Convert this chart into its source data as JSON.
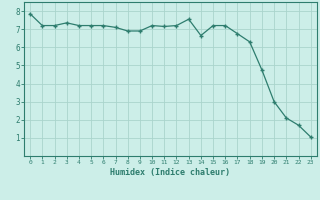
{
  "x": [
    0,
    1,
    2,
    3,
    4,
    5,
    6,
    7,
    8,
    9,
    10,
    11,
    12,
    13,
    14,
    15,
    16,
    17,
    18,
    19,
    20,
    21,
    22,
    23
  ],
  "y": [
    7.85,
    7.2,
    7.2,
    7.35,
    7.2,
    7.2,
    7.2,
    7.1,
    6.9,
    6.9,
    7.2,
    7.15,
    7.2,
    7.55,
    6.65,
    7.2,
    7.2,
    6.75,
    6.3,
    4.75,
    3.0,
    2.1,
    1.7,
    1.05
  ],
  "xlabel": "Humidex (Indice chaleur)",
  "xlim": [
    -0.5,
    23.5
  ],
  "ylim": [
    0,
    8.5
  ],
  "yticks": [
    1,
    2,
    3,
    4,
    5,
    6,
    7,
    8
  ],
  "xticks": [
    0,
    1,
    2,
    3,
    4,
    5,
    6,
    7,
    8,
    9,
    10,
    11,
    12,
    13,
    14,
    15,
    16,
    17,
    18,
    19,
    20,
    21,
    22,
    23
  ],
  "line_color": "#2e7d6e",
  "marker_color": "#2e7d6e",
  "bg_color": "#cceee8",
  "grid_color": "#aad4cc",
  "axis_color": "#2e7d6e",
  "tick_color": "#2e7d6e",
  "label_color": "#2e7d6e"
}
